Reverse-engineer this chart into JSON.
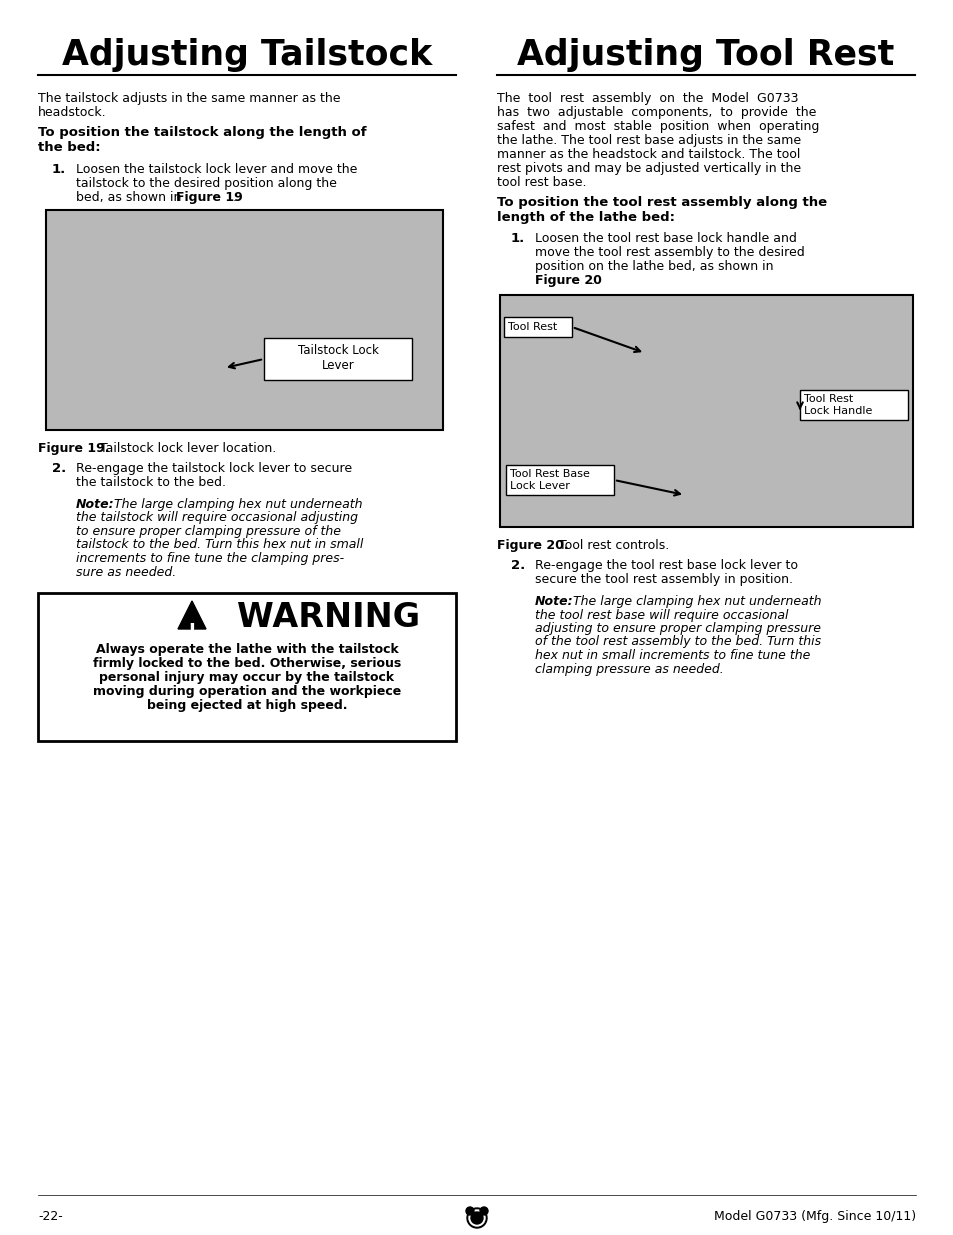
{
  "title_left": "Adjusting Tailstock",
  "title_right": "Adjusting Tool Rest",
  "bg_color": "#ffffff",
  "text_color": "#000000",
  "left_col": {
    "intro_line1": "The tailstock adjusts in the same manner as the",
    "intro_line2": "headstock.",
    "subheading_line1": "To position the tailstock along the length of",
    "subheading_line2": "the bed:",
    "step1_line1": "Loosen the tailstock lock lever and move the",
    "step1_line2": "tailstock to the desired position along the",
    "step1_line3": "bed, as shown in ",
    "step1_bold": "Figure 19",
    "step1_end": ".",
    "fig19_caption_bold": "Figure 19.",
    "fig19_caption_rest": " Tailstock lock lever location.",
    "step2_line1": "Re-engage the tailstock lock lever to secure",
    "step2_line2": "the tailstock to the bed.",
    "note_bold": "Note:",
    "note_italic_line1": " The large clamping hex nut underneath",
    "note_italic_line2": "the tailstock will require occasional adjusting",
    "note_italic_line3": "to ensure proper clamping pressure of the",
    "note_italic_line4": "tailstock to the bed. Turn this hex nut in small",
    "note_italic_line5": "increments to fine tune the clamping pres-",
    "note_italic_line6": "sure as needed.",
    "warning_title": "WARNING",
    "warning_body_line1": "Always operate the lathe with the tailstock",
    "warning_body_line2": "firmly locked to the bed. Otherwise, serious",
    "warning_body_line3": "personal injury may occur by the tailstock",
    "warning_body_line4": "moving during operation and the workpiece",
    "warning_body_line5": "being ejected at high speed."
  },
  "right_col": {
    "intro_line1": "The  tool  rest  assembly  on  the  Model  G0733",
    "intro_line2": "has  two  adjustable  components,  to  provide  the",
    "intro_line3": "safest  and  most  stable  position  when  operating",
    "intro_line4": "the lathe. The tool rest base adjusts in the same",
    "intro_line5": "manner as the headstock and tailstock. The tool",
    "intro_line6": "rest pivots and may be adjusted vertically in the",
    "intro_line7": "tool rest base.",
    "subheading_line1": "To position the tool rest assembly along the",
    "subheading_line2": "length of the lathe bed:",
    "step1_line1": "Loosen the tool rest base lock handle and",
    "step1_line2": "move the tool rest assembly to the desired",
    "step1_line3": "position on the lathe bed, as shown in",
    "step1_bold": "Figure 20",
    "step1_end": ".",
    "fig20_caption_bold": "Figure 20.",
    "fig20_caption_rest": " Tool rest controls.",
    "step2_line1": "Re-engage the tool rest base lock lever to",
    "step2_line2": "secure the tool rest assembly in position.",
    "note_bold": "Note:",
    "note_italic_line1": " The large clamping hex nut underneath",
    "note_italic_line2": "the tool rest base will require occasional",
    "note_italic_line3": "adjusting to ensure proper clamping pressure",
    "note_italic_line4": "of the tool rest assembly to the bed. Turn this",
    "note_italic_line5": "hex nut in small increments to fine tune the",
    "note_italic_line6": "clamping pressure as needed."
  },
  "footer_left": "-22-",
  "footer_right": "Model G0733 (Mfg. Since 10/11)"
}
